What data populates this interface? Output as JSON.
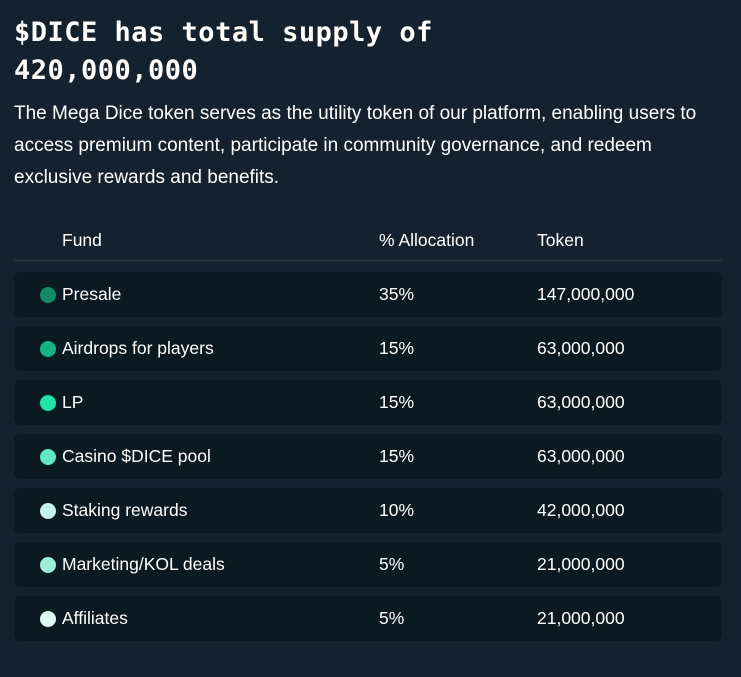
{
  "heading": {
    "line1": "$DICE has total supply of",
    "line2": "420,000,000"
  },
  "description": "The Mega Dice token serves as the utility token of our platform, enabling users to access premium content, participate in community governance, and redeem exclusive rewards and benefits.",
  "table": {
    "headers": {
      "fund": "Fund",
      "allocation": "% Allocation",
      "token": "Token"
    },
    "rows": [
      {
        "fund": "Presale",
        "allocation": "35%",
        "token": "147,000,000",
        "color": "#138a6a"
      },
      {
        "fund": "Airdrops for players",
        "allocation": "15%",
        "token": "63,000,000",
        "color": "#15b487"
      },
      {
        "fund": "LP",
        "allocation": "15%",
        "token": "63,000,000",
        "color": "#1de3a8"
      },
      {
        "fund": "Casino $DICE pool",
        "allocation": "15%",
        "token": "63,000,000",
        "color": "#63e6c6"
      },
      {
        "fund": "Staking rewards",
        "allocation": "10%",
        "token": "42,000,000",
        "color": "#c4f4ee"
      },
      {
        "fund": "Marketing/KOL deals",
        "allocation": "5%",
        "token": "21,000,000",
        "color": "#9eeedc"
      },
      {
        "fund": "Affiliates",
        "allocation": "5%",
        "token": "21,000,000",
        "color": "#dffaf5"
      }
    ]
  }
}
